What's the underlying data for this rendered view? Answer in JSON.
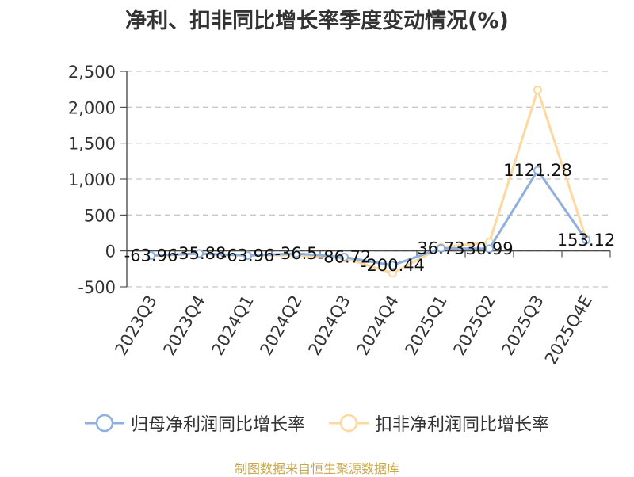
{
  "title": "净利、扣非同比增长率季度变动情况(%)",
  "source_note": "制图数据来自恒生聚源数据库",
  "chart_data": {
    "type": "line",
    "categories": [
      "2023Q3",
      "2023Q4",
      "2024Q1",
      "2024Q2",
      "2024Q3",
      "2024Q4",
      "2025Q1",
      "2025Q2",
      "2025Q3",
      "2025Q4E"
    ],
    "ylim": [
      -500,
      2500
    ],
    "yticks": [
      -500,
      0,
      500,
      1000,
      1500,
      2000,
      2500
    ],
    "ytick_labels": [
      "-500",
      "0",
      "500",
      "1,000",
      "1,500",
      "2,000",
      "2,500"
    ],
    "grid": true,
    "legend_position": "bottom",
    "series": [
      {
        "name": "归母净利润同比增长率",
        "color": "#8fb0dc",
        "values": [
          -63.96,
          -35.88,
          -63.96,
          -36.5,
          -86.72,
          -200.44,
          36.73,
          30.99,
          1121.28,
          153.12
        ],
        "labels": [
          "-63.96",
          "-35.88",
          "-63.96",
          "-36.5",
          "-86.72",
          "-200.44",
          "36.73",
          "30.99",
          "1121.28",
          "153.12"
        ]
      },
      {
        "name": "扣非净利润同比增长率",
        "color": "#fdd9a0",
        "values": [
          -70,
          -40,
          -60,
          -60,
          -100,
          -310,
          50,
          120,
          2240,
          170
        ]
      }
    ]
  }
}
